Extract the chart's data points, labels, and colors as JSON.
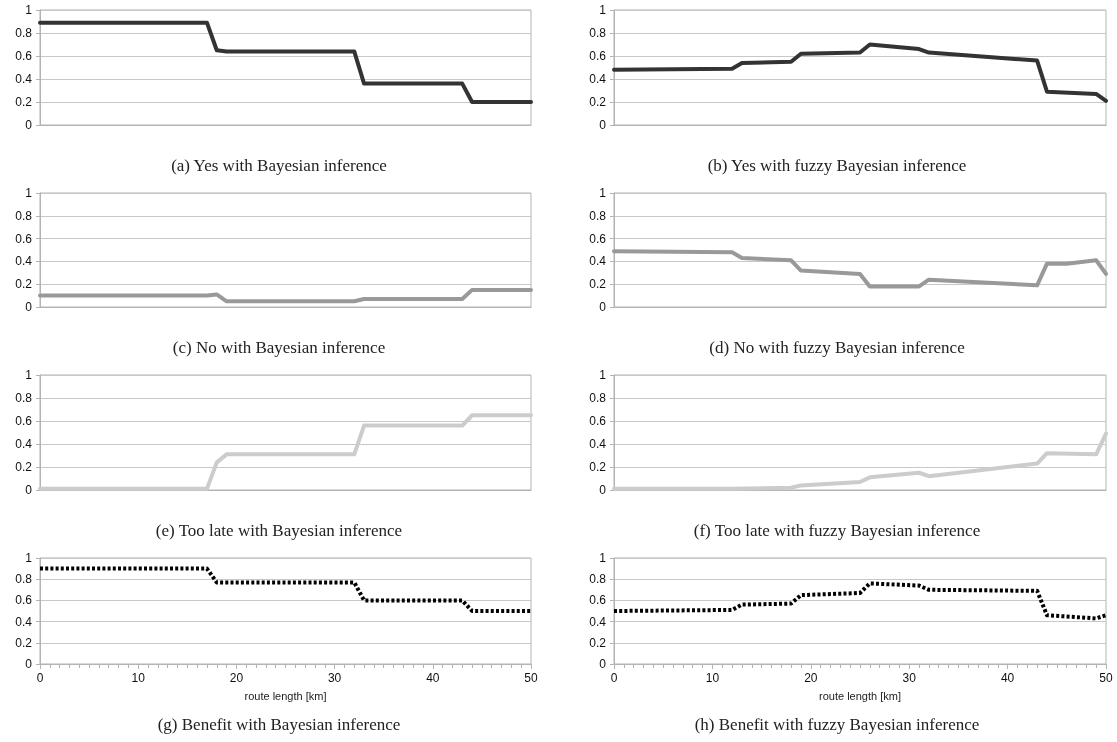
{
  "chart_data": [
    {
      "type": "line",
      "title": "(a) Yes with Bayesian inference",
      "x": [
        0,
        17,
        18,
        19,
        32,
        33,
        43,
        44,
        50
      ],
      "series": [
        {
          "color": "#333333",
          "values": [
            0.89,
            0.89,
            0.65,
            0.64,
            0.64,
            0.36,
            0.36,
            0.2,
            0.2
          ]
        }
      ],
      "xlim": [
        0,
        50
      ],
      "ylim": [
        0,
        1
      ],
      "yticks": [
        0,
        0.2,
        0.4,
        0.6,
        0.8,
        1
      ],
      "grid": "y",
      "tick_labels": "y",
      "marker": "none",
      "line_style": "solid"
    },
    {
      "type": "line",
      "title": "(b) Yes with fuzzy Bayesian inference",
      "x": [
        0,
        12,
        13,
        18,
        19,
        25,
        26,
        31,
        32,
        43,
        44,
        49,
        50
      ],
      "series": [
        {
          "color": "#333333",
          "values": [
            0.48,
            0.49,
            0.54,
            0.55,
            0.62,
            0.63,
            0.7,
            0.66,
            0.63,
            0.56,
            0.29,
            0.27,
            0.21
          ]
        }
      ],
      "xlim": [
        0,
        50
      ],
      "ylim": [
        0,
        1
      ],
      "yticks": [
        0,
        0.2,
        0.4,
        0.6,
        0.8,
        1
      ],
      "grid": "y",
      "tick_labels": "y",
      "marker": "none",
      "line_style": "solid"
    },
    {
      "type": "line",
      "title": "(c) No with Bayesian inference",
      "x": [
        0,
        17,
        18,
        19,
        32,
        33,
        43,
        44,
        50
      ],
      "series": [
        {
          "color": "#999999",
          "values": [
            0.1,
            0.1,
            0.11,
            0.05,
            0.05,
            0.07,
            0.07,
            0.15,
            0.15
          ]
        }
      ],
      "xlim": [
        0,
        50
      ],
      "ylim": [
        0,
        1
      ],
      "yticks": [
        0,
        0.2,
        0.4,
        0.6,
        0.8,
        1
      ],
      "grid": "y",
      "tick_labels": "y",
      "marker": "none",
      "line_style": "solid"
    },
    {
      "type": "line",
      "title": "(d) No with fuzzy Bayesian inference",
      "x": [
        0,
        12,
        13,
        18,
        19,
        25,
        26,
        31,
        32,
        43,
        44,
        46,
        49,
        50
      ],
      "series": [
        {
          "color": "#999999",
          "values": [
            0.49,
            0.48,
            0.43,
            0.41,
            0.32,
            0.29,
            0.18,
            0.18,
            0.24,
            0.19,
            0.38,
            0.38,
            0.41,
            0.29
          ]
        }
      ],
      "xlim": [
        0,
        50
      ],
      "ylim": [
        0,
        1
      ],
      "yticks": [
        0,
        0.2,
        0.4,
        0.6,
        0.8,
        1
      ],
      "grid": "y",
      "tick_labels": "y",
      "marker": "none",
      "line_style": "solid"
    },
    {
      "type": "line",
      "title": "(e) Too late with Bayesian inference",
      "x": [
        0,
        17,
        18,
        19,
        32,
        33,
        43,
        44,
        50
      ],
      "series": [
        {
          "color": "#cccccc",
          "values": [
            0.01,
            0.01,
            0.24,
            0.31,
            0.31,
            0.56,
            0.56,
            0.65,
            0.65
          ]
        }
      ],
      "xlim": [
        0,
        50
      ],
      "ylim": [
        0,
        1
      ],
      "yticks": [
        0,
        0.2,
        0.4,
        0.6,
        0.8,
        1
      ],
      "grid": "y",
      "tick_labels": "y",
      "marker": "none",
      "line_style": "solid"
    },
    {
      "type": "line",
      "title": "(f) Too late with fuzzy Bayesian inference",
      "x": [
        0,
        12,
        18,
        19,
        25,
        26,
        31,
        32,
        43,
        44,
        49,
        50
      ],
      "series": [
        {
          "color": "#cccccc",
          "values": [
            0.01,
            0.01,
            0.02,
            0.04,
            0.07,
            0.11,
            0.15,
            0.12,
            0.23,
            0.32,
            0.31,
            0.49
          ]
        }
      ],
      "xlim": [
        0,
        50
      ],
      "ylim": [
        0,
        1
      ],
      "yticks": [
        0,
        0.2,
        0.4,
        0.6,
        0.8,
        1
      ],
      "grid": "y",
      "tick_labels": "y",
      "marker": "none",
      "line_style": "solid"
    },
    {
      "type": "line",
      "title": "(g) Benefit with Bayesian inference",
      "xlabel": "route length [km]",
      "x": [
        0,
        17,
        18,
        32,
        33,
        43,
        44,
        50
      ],
      "series": [
        {
          "color": "#000000",
          "values": [
            0.9,
            0.9,
            0.77,
            0.77,
            0.6,
            0.6,
            0.5,
            0.5
          ]
        }
      ],
      "xlim": [
        0,
        50
      ],
      "xticks": [
        0,
        10,
        20,
        30,
        40,
        50
      ],
      "ylim": [
        0,
        1
      ],
      "yticks": [
        0,
        0.2,
        0.4,
        0.6,
        0.8,
        1
      ],
      "grid": "y",
      "marker": "none",
      "line_style": "dashed"
    },
    {
      "type": "line",
      "title": "(h) Benefit with fuzzy Bayesian inference",
      "xlabel": "route length [km]",
      "x": [
        0,
        12,
        13,
        18,
        19,
        25,
        26,
        31,
        32,
        43,
        44,
        49,
        50
      ],
      "series": [
        {
          "color": "#000000",
          "values": [
            0.5,
            0.51,
            0.56,
            0.57,
            0.65,
            0.67,
            0.76,
            0.74,
            0.7,
            0.69,
            0.46,
            0.43,
            0.46
          ]
        }
      ],
      "xlim": [
        0,
        50
      ],
      "xticks": [
        0,
        10,
        20,
        30,
        40,
        50
      ],
      "ylim": [
        0,
        1
      ],
      "yticks": [
        0,
        0.2,
        0.4,
        0.6,
        0.8,
        1
      ],
      "grid": "y",
      "marker": "none",
      "line_style": "dashed"
    }
  ]
}
